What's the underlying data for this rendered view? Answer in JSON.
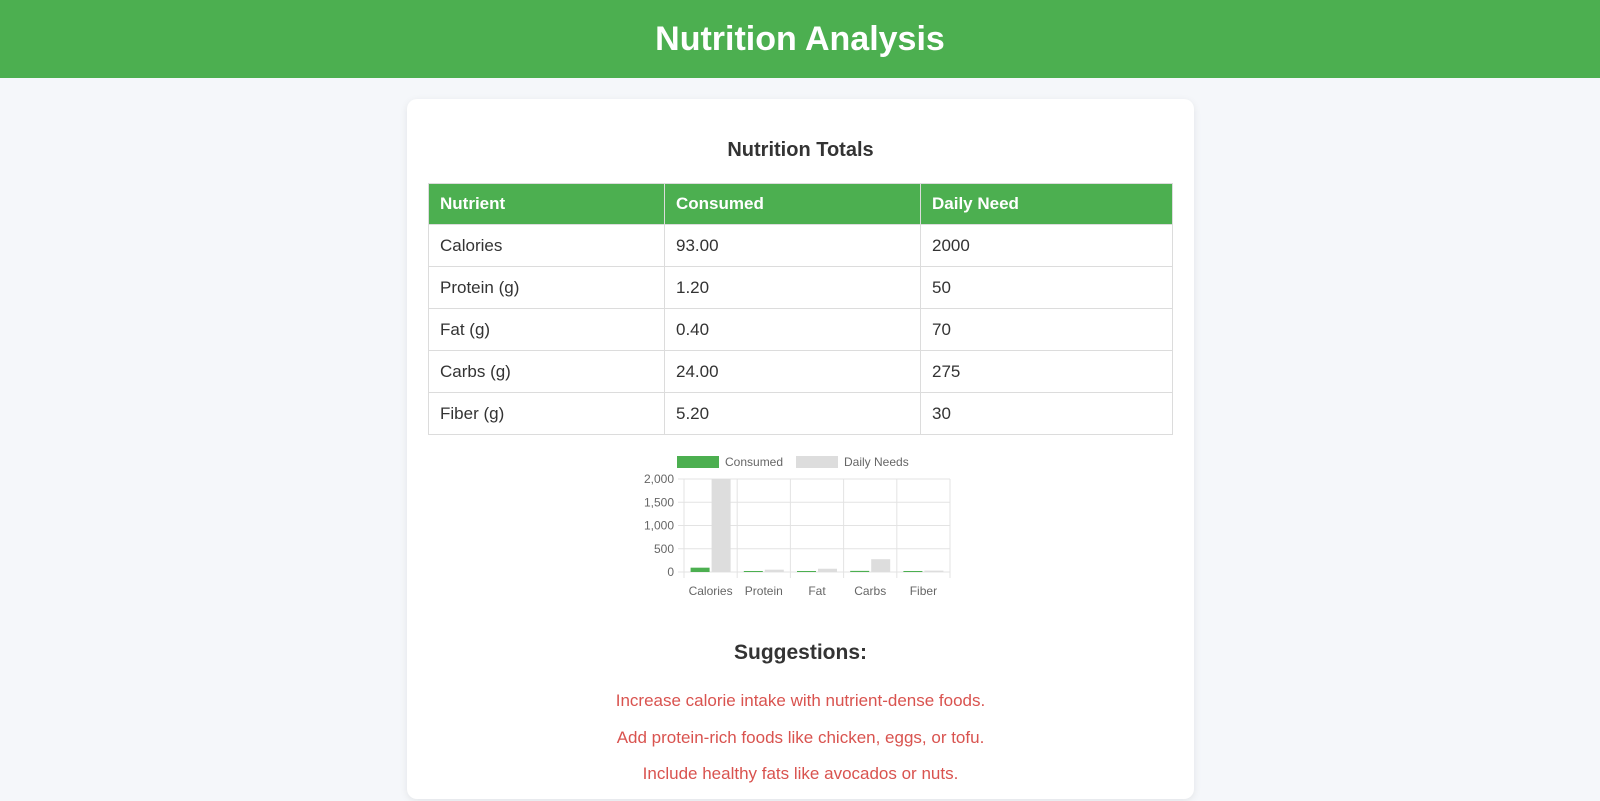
{
  "header": {
    "title": "Nutrition Analysis"
  },
  "totals": {
    "title": "Nutrition Totals",
    "columns": [
      "Nutrient",
      "Consumed",
      "Daily Need"
    ],
    "rows": [
      [
        "Calories",
        "93.00",
        "2000"
      ],
      [
        "Protein (g)",
        "1.20",
        "50"
      ],
      [
        "Fat (g)",
        "0.40",
        "70"
      ],
      [
        "Carbs (g)",
        "24.00",
        "275"
      ],
      [
        "Fiber (g)",
        "5.20",
        "30"
      ]
    ]
  },
  "chart_data": {
    "type": "bar",
    "categories": [
      "Calories",
      "Protein",
      "Fat",
      "Carbs",
      "Fiber"
    ],
    "series": [
      {
        "name": "Consumed",
        "values": [
          93,
          1.2,
          0.4,
          24,
          5.2
        ],
        "color": "#4caf50"
      },
      {
        "name": "Daily Needs",
        "values": [
          2000,
          50,
          70,
          275,
          30
        ],
        "color": "#dddddd"
      }
    ],
    "yticks": [
      "0",
      "500",
      "1,000",
      "1,500",
      "2,000"
    ],
    "ylim": [
      0,
      2000
    ],
    "grid": true,
    "legend": "top"
  },
  "suggestions": {
    "title": "Suggestions:",
    "items": [
      "Increase calorie intake with nutrient-dense foods.",
      "Add protein-rich foods like chicken, eggs, or tofu.",
      "Include healthy fats like avocados or nuts."
    ],
    "color": "#d9534f"
  },
  "colors": {
    "accent": "#4caf50"
  }
}
